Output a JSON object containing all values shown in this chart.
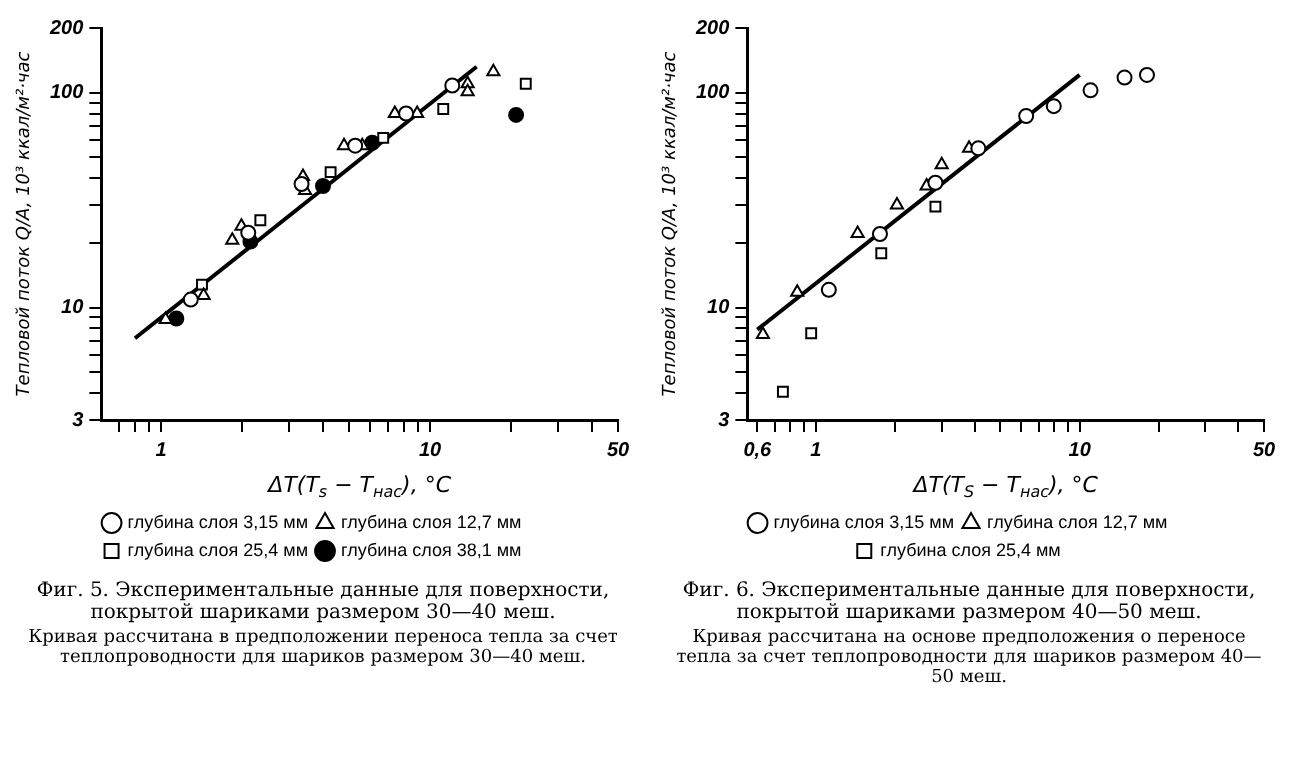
{
  "chart_data": [
    {
      "type": "scatter",
      "title": "Фиг. 5. Экспериментальные данные для поверхности, покрытой шариками размером 30—40 меш.",
      "xlabel": "ΔT(T$_{s}$ − T$_{нас}$), °C",
      "ylabel": "Тепловой поток Q/A, 10³ ккал/м²·час",
      "log": "xy",
      "grid": false,
      "legend": "bottom",
      "xlim": [
        0.6,
        50
      ],
      "ylim": [
        3,
        200
      ],
      "xticks": [
        {
          "value": 0.7,
          "label": null
        },
        {
          "value": 0.8,
          "label": null
        },
        {
          "value": 0.9,
          "label": null
        },
        1,
        {
          "value": 2,
          "label": null
        },
        {
          "value": 3,
          "label": null
        },
        {
          "value": 4,
          "label": null
        },
        {
          "value": 5,
          "label": null
        },
        {
          "value": 6,
          "label": null
        },
        {
          "value": 7,
          "label": null
        },
        {
          "value": 8,
          "label": null
        },
        {
          "value": 9,
          "label": null
        },
        10,
        {
          "value": 20,
          "label": null
        },
        {
          "value": 30,
          "label": null
        },
        {
          "value": 40,
          "label": null
        },
        50
      ],
      "yticks": [
        3,
        {
          "value": 4,
          "label": null
        },
        {
          "value": 5,
          "label": null
        },
        {
          "value": 6,
          "label": null
        },
        {
          "value": 7,
          "label": null
        },
        {
          "value": 8,
          "label": null
        },
        {
          "value": 9,
          "label": null
        },
        10,
        {
          "value": 20,
          "label": null
        },
        {
          "value": 30,
          "label": null
        },
        {
          "value": 40,
          "label": null
        },
        {
          "value": 50,
          "label": null
        },
        {
          "value": 60,
          "label": null
        },
        {
          "value": 70,
          "label": null
        },
        {
          "value": 80,
          "label": null
        },
        {
          "value": 90,
          "label": null
        },
        100,
        200
      ],
      "series": [
        {
          "name": "глубина слоя 3,15 мм",
          "color": "#000000",
          "marker": "circle",
          "x": [
            1.29,
            2.11,
            3.33,
            5.27,
            8.15,
            12.1
          ],
          "values": [
            10.9,
            22.3,
            37.6,
            56.7,
            80,
            108
          ]
        },
        {
          "name": "глубина слоя 12,7 мм",
          "color": "#000000",
          "marker": "triangle",
          "x": [
            1.04,
            1.44,
            1.84,
            1.99,
            3.37,
            3.43,
            4.79,
            5.6,
            7.4,
            8.96,
            13.8,
            13.8,
            17.2
          ],
          "values": [
            8.8,
            11.4,
            20.6,
            23.9,
            40.8,
            35.1,
            56.7,
            56.7,
            80,
            80,
            110,
            101,
            125
          ]
        },
        {
          "name": "глубина слоя 25,4 мм",
          "color": "#000000",
          "marker": "square",
          "x": [
            1.42,
            2.34,
            4.27,
            6.7,
            11.2,
            22.7
          ],
          "values": [
            12.8,
            25.5,
            42.7,
            61.6,
            84,
            110
          ]
        },
        {
          "name": "глубина слоя 38,1 мм",
          "color": "#000000",
          "marker": "filled_circle",
          "x": [
            1.14,
            2.15,
            4.0,
            6.1,
            20.9
          ],
          "values": [
            8.9,
            20.3,
            36.8,
            58.5,
            78.8
          ]
        },
        {
          "type": "line",
          "color": "#000000",
          "x": [
            0.8,
            14.9
          ],
          "values": [
            7.2,
            132
          ]
        }
      ],
      "annotations": [
        "Кривая рассчитана в предположении переноса тепла за счет теплопроводности для шариков размером 30—40 меш."
      ]
    },
    {
      "type": "scatter",
      "title": "Фиг. 6. Экспериментальные данные для поверхности, покрытой шариками размером 40—50 меш.",
      "xlabel": "ΔT(T$_{S}$ − T$_{нас}$), °C",
      "ylabel": "Тепловой поток Q/A, 10³ ккал/м²·час",
      "log": "xy",
      "grid": false,
      "legend": "bottom",
      "xlim": [
        0.55,
        50
      ],
      "ylim": [
        3,
        200
      ],
      "xticks": [
        {
          "value": 0.6,
          "label": "0,6"
        },
        {
          "value": 0.7,
          "label": null
        },
        {
          "value": 0.8,
          "label": null
        },
        {
          "value": 0.9,
          "label": null
        },
        1,
        {
          "value": 2,
          "label": null
        },
        {
          "value": 3,
          "label": null
        },
        {
          "value": 4,
          "label": null
        },
        {
          "value": 5,
          "label": null
        },
        {
          "value": 6,
          "label": null
        },
        {
          "value": 7,
          "label": null
        },
        {
          "value": 8,
          "label": null
        },
        {
          "value": 9,
          "label": null
        },
        10,
        {
          "value": 20,
          "label": null
        },
        {
          "value": 30,
          "label": null
        },
        {
          "value": 40,
          "label": null
        },
        50
      ],
      "yticks": [
        3,
        {
          "value": 4,
          "label": null
        },
        {
          "value": 5,
          "label": null
        },
        {
          "value": 6,
          "label": null
        },
        {
          "value": 7,
          "label": null
        },
        {
          "value": 8,
          "label": null
        },
        {
          "value": 9,
          "label": null
        },
        10,
        {
          "value": 20,
          "label": null
        },
        {
          "value": 30,
          "label": null
        },
        {
          "value": 40,
          "label": null
        },
        {
          "value": 50,
          "label": null
        },
        {
          "value": 60,
          "label": null
        },
        {
          "value": 70,
          "label": null
        },
        {
          "value": 80,
          "label": null
        },
        {
          "value": 90,
          "label": null
        },
        100,
        200
      ],
      "series": [
        {
          "name": "глубина слоя 3,15 мм",
          "color": "#000000",
          "marker": "circle",
          "x": [
            1.12,
            1.75,
            2.84,
            4.13,
            6.27,
            7.98,
            11.0,
            14.8,
            18.0
          ],
          "values": [
            12.1,
            22,
            38.1,
            55.1,
            77.9,
            86.6,
            102.6,
            117.6,
            121
          ]
        },
        {
          "name": "глубина слоя 12,7 мм",
          "color": "#000000",
          "marker": "triangle",
          "x": [
            0.63,
            0.85,
            1.44,
            2.03,
            2.63,
            3.0,
            3.81
          ],
          "values": [
            7.5,
            11.8,
            22.1,
            30,
            36.8,
            46.2,
            55.1
          ]
        },
        {
          "name": "глубина слоя 25,4 мм",
          "color": "#000000",
          "marker": "square",
          "x": [
            0.75,
            0.96,
            1.77,
            2.84
          ],
          "values": [
            4.06,
            7.6,
            17.9,
            29.5
          ]
        },
        {
          "type": "line",
          "color": "#000000",
          "x": [
            0.6,
            10
          ],
          "values": [
            7.9,
            121
          ]
        }
      ],
      "annotations": [
        "Кривая рассчитана на основе предположения о переносе тепла за счет теплопроводности для шариков размером 40—50 меш."
      ]
    }
  ]
}
